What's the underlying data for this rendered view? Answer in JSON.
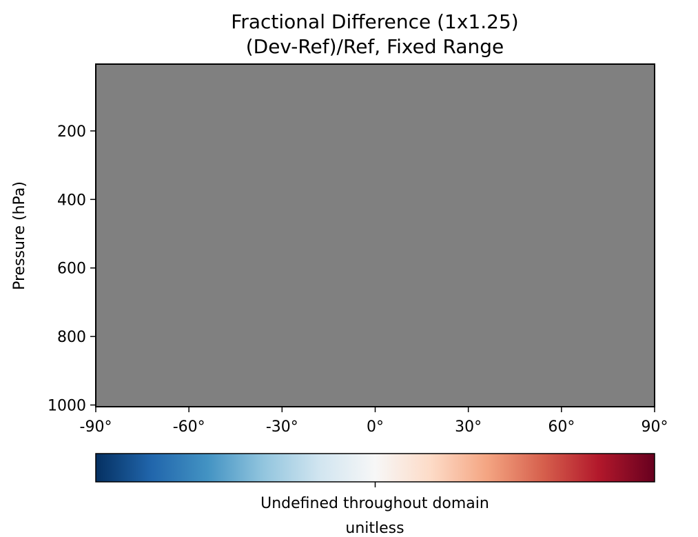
{
  "chart_data": {
    "type": "heatmap",
    "title": "Fractional Difference (1x1.25)",
    "subtitle": "(Dev-Ref)/Ref, Fixed Range",
    "xlabel": "",
    "ylabel": "Pressure (hPa)",
    "x_ticks": [
      -90,
      -60,
      -30,
      0,
      30,
      60,
      90
    ],
    "x_tick_labels": [
      "-90°",
      "-60°",
      "-30°",
      "0°",
      "30°",
      "60°",
      "90°"
    ],
    "xlim": [
      -90,
      90
    ],
    "y_ticks": [
      200,
      400,
      600,
      800,
      1000
    ],
    "y_tick_labels": [
      "200",
      "400",
      "600",
      "800",
      "1000"
    ],
    "ylim": [
      1005,
      5
    ],
    "field": "undefined",
    "fill_color": "#808080",
    "grid": false,
    "colorbar": {
      "colormap": "RdBu_r",
      "colors": [
        "#053061",
        "#2166ac",
        "#4393c3",
        "#92c5de",
        "#d1e5f0",
        "#f7f7f7",
        "#fddbc7",
        "#f4a582",
        "#d6604d",
        "#b2182b",
        "#67001f"
      ],
      "orientation": "horizontal",
      "ticks": [
        0
      ],
      "label_line1": "Undefined throughout domain",
      "label_line2": "unitless"
    }
  }
}
